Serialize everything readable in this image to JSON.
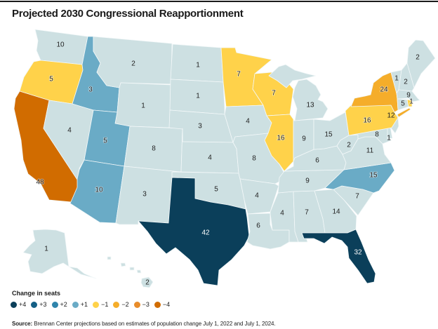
{
  "title": "Projected 2030 Congressional Reapportionment",
  "legend": {
    "title": "Change in seats",
    "items": [
      {
        "change": 4,
        "label": "+4",
        "color": "#0b3f5a"
      },
      {
        "change": 3,
        "label": "+3",
        "color": "#145f85"
      },
      {
        "change": 2,
        "label": "+2",
        "color": "#2f84ab"
      },
      {
        "change": 1,
        "label": "+1",
        "color": "#6aabc6"
      },
      {
        "change": -1,
        "label": "−1",
        "color": "#ffd24a"
      },
      {
        "change": -2,
        "label": "−2",
        "color": "#f5ad2a"
      },
      {
        "change": -3,
        "label": "−3",
        "color": "#e88c2a"
      },
      {
        "change": -4,
        "label": "−4",
        "color": "#d16c00"
      }
    ],
    "no_change_color": "#cde0e2"
  },
  "source": {
    "label": "Source:",
    "text": " Brennan Center projections based on estimates of population change July 1, 2022 and July 1, 2024."
  },
  "map_data": {
    "type": "choropleth",
    "value_label": "Projected seats",
    "color_variable": "Change in seats",
    "states": [
      {
        "state": "WA",
        "seats": 10,
        "change": 0
      },
      {
        "state": "OR",
        "seats": 5,
        "change": -1
      },
      {
        "state": "CA",
        "seats": 48,
        "change": -4
      },
      {
        "state": "NV",
        "seats": 4,
        "change": 0
      },
      {
        "state": "ID",
        "seats": 3,
        "change": 1
      },
      {
        "state": "MT",
        "seats": 2,
        "change": 0
      },
      {
        "state": "WY",
        "seats": 1,
        "change": 0
      },
      {
        "state": "UT",
        "seats": 5,
        "change": 1
      },
      {
        "state": "AZ",
        "seats": 10,
        "change": 1
      },
      {
        "state": "CO",
        "seats": 8,
        "change": 0
      },
      {
        "state": "NM",
        "seats": 3,
        "change": 0
      },
      {
        "state": "ND",
        "seats": 1,
        "change": 0
      },
      {
        "state": "SD",
        "seats": 1,
        "change": 0
      },
      {
        "state": "NE",
        "seats": 3,
        "change": 0
      },
      {
        "state": "KS",
        "seats": 4,
        "change": 0
      },
      {
        "state": "OK",
        "seats": 5,
        "change": 0
      },
      {
        "state": "TX",
        "seats": 42,
        "change": 4
      },
      {
        "state": "MN",
        "seats": 7,
        "change": -1
      },
      {
        "state": "IA",
        "seats": 4,
        "change": 0
      },
      {
        "state": "MO",
        "seats": 8,
        "change": 0
      },
      {
        "state": "AR",
        "seats": 4,
        "change": 0
      },
      {
        "state": "LA",
        "seats": 6,
        "change": 0
      },
      {
        "state": "WI",
        "seats": 7,
        "change": -1
      },
      {
        "state": "IL",
        "seats": 16,
        "change": -1
      },
      {
        "state": "MS",
        "seats": 4,
        "change": 0
      },
      {
        "state": "AL",
        "seats": 7,
        "change": 0
      },
      {
        "state": "TN",
        "seats": 9,
        "change": 0
      },
      {
        "state": "KY",
        "seats": 6,
        "change": 0
      },
      {
        "state": "IN",
        "seats": 9,
        "change": 0
      },
      {
        "state": "OH",
        "seats": 15,
        "change": 0
      },
      {
        "state": "MI",
        "seats": 13,
        "change": 0
      },
      {
        "state": "GA",
        "seats": 14,
        "change": 0
      },
      {
        "state": "SC",
        "seats": 7,
        "change": 0
      },
      {
        "state": "NC",
        "seats": 15,
        "change": 1
      },
      {
        "state": "FL",
        "seats": 32,
        "change": 4
      },
      {
        "state": "WV",
        "seats": 2,
        "change": 0
      },
      {
        "state": "VA",
        "seats": 11,
        "change": 0
      },
      {
        "state": "MD",
        "seats": 8,
        "change": 0
      },
      {
        "state": "DE",
        "seats": 1,
        "change": 0
      },
      {
        "state": "NJ",
        "seats": 12,
        "change": 0
      },
      {
        "state": "PA",
        "seats": 16,
        "change": -1
      },
      {
        "state": "NY",
        "seats": 24,
        "change": -2
      },
      {
        "state": "VT",
        "seats": 1,
        "change": 0
      },
      {
        "state": "NH",
        "seats": 2,
        "change": 0
      },
      {
        "state": "ME",
        "seats": 2,
        "change": 0
      },
      {
        "state": "MA",
        "seats": 9,
        "change": 0
      },
      {
        "state": "CT",
        "seats": 5,
        "change": 0
      },
      {
        "state": "RI",
        "seats": 1,
        "change": -1
      },
      {
        "state": "AK",
        "seats": 1,
        "change": 0
      },
      {
        "state": "HI",
        "seats": 2,
        "change": 0
      }
    ]
  }
}
